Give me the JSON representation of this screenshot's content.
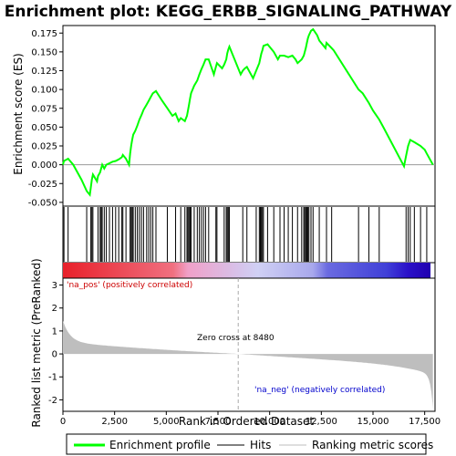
{
  "chart_data": {
    "type": "line",
    "title": "Enrichment plot: KEGG_ERBB_SIGNALING_PATHWAY",
    "xlabel": "Rank in Ordered Dataset",
    "ylabel_top": "Enrichment score (ES)",
    "ylabel_bottom": "Ranked list metric (PreRanked)",
    "xlim": [
      0,
      18000
    ],
    "ylim_top": [
      -0.055,
      0.185
    ],
    "ylim_bottom": [
      -2.5,
      3.3
    ],
    "x_ticks": [
      0,
      2500,
      5000,
      7500,
      10000,
      12500,
      15000,
      17500
    ],
    "x_tick_labels": [
      "0",
      "2,500",
      "5,000",
      "7,500",
      "10,000",
      "12,500",
      "15,000",
      "17,500"
    ],
    "y_ticks_top": [
      -0.05,
      -0.025,
      0.0,
      0.025,
      0.05,
      0.075,
      0.1,
      0.125,
      0.15,
      0.175
    ],
    "y_tick_labels_top": [
      "-0.050",
      "-0.025",
      "0.000",
      "0.025",
      "0.050",
      "0.075",
      "0.100",
      "0.125",
      "0.150",
      "0.175"
    ],
    "y_ticks_bottom": [
      -2,
      -1,
      0,
      1,
      2,
      3
    ],
    "y_tick_labels_bottom": [
      "-2",
      "-1",
      "0",
      "1",
      "2",
      "3"
    ],
    "annotations": {
      "pos_label": "'na_pos' (positively correlated)",
      "neg_label": "'na_neg' (negatively correlated)",
      "zero_cross": "Zero cross at 8480",
      "zero_cross_x": 8480
    },
    "hits": [
      50,
      250,
      1150,
      1350,
      1400,
      1450,
      1700,
      1800,
      1850,
      1900,
      2000,
      2100,
      2250,
      2400,
      2550,
      2700,
      2850,
      2900,
      3050,
      3250,
      3300,
      3350,
      3400,
      3500,
      3600,
      3700,
      3800,
      3900,
      4050,
      4150,
      4250,
      4350,
      4500,
      5050,
      5450,
      5700,
      5900,
      6000,
      6050,
      6100,
      6150,
      6200,
      6350,
      6500,
      6600,
      6700,
      6800,
      6900,
      7050,
      7400,
      7450,
      7800,
      7900,
      7950,
      8000,
      8050,
      8700,
      8900,
      9350,
      9500,
      9550,
      9600,
      9650,
      9700,
      9900,
      10200,
      10500,
      10700,
      10900,
      11100,
      11350,
      11550,
      11650,
      11700,
      11750,
      11800,
      11850,
      11900,
      12000,
      12100,
      12400,
      12750,
      13000,
      14300,
      14800,
      15300,
      16600,
      16700,
      16800,
      17000,
      17300,
      17600
    ],
    "es_curve": {
      "x": [
        0,
        50,
        250,
        500,
        900,
        1150,
        1300,
        1350,
        1400,
        1450,
        1650,
        1700,
        1800,
        1850,
        1900,
        2000,
        2100,
        2250,
        2400,
        2550,
        2700,
        2850,
        2900,
        3050,
        3200,
        3250,
        3300,
        3350,
        3400,
        3500,
        3600,
        3700,
        3800,
        3900,
        4050,
        4150,
        4250,
        4350,
        4500,
        4800,
        5050,
        5300,
        5450,
        5600,
        5700,
        5900,
        6000,
        6050,
        6100,
        6150,
        6200,
        6350,
        6500,
        6600,
        6700,
        6800,
        6900,
        7050,
        7300,
        7400,
        7450,
        7700,
        7800,
        7900,
        7950,
        8000,
        8050,
        8600,
        8700,
        8800,
        8900,
        9200,
        9350,
        9500,
        9550,
        9600,
        9650,
        9700,
        9900,
        10200,
        10400,
        10500,
        10700,
        10900,
        11100,
        11250,
        11350,
        11550,
        11650,
        11700,
        11750,
        11800,
        11850,
        11900,
        12000,
        12100,
        12300,
        12400,
        12700,
        12750,
        13000,
        13100,
        14300,
        14500,
        14800,
        15000,
        15300,
        15500,
        16500,
        16600,
        16700,
        16800,
        17000,
        17300,
        17500,
        17600,
        17900
      ],
      "y": [
        0.0,
        0.005,
        0.008,
        0.0,
        -0.02,
        -0.035,
        -0.04,
        -0.03,
        -0.02,
        -0.013,
        -0.022,
        -0.015,
        -0.01,
        -0.005,
        0.0,
        -0.005,
        0.0,
        0.002,
        0.004,
        0.005,
        0.007,
        0.01,
        0.013,
        0.008,
        0.0,
        0.015,
        0.025,
        0.033,
        0.04,
        0.045,
        0.052,
        0.06,
        0.066,
        0.073,
        0.08,
        0.085,
        0.09,
        0.095,
        0.098,
        0.085,
        0.075,
        0.065,
        0.068,
        0.058,
        0.062,
        0.058,
        0.065,
        0.072,
        0.08,
        0.088,
        0.095,
        0.105,
        0.112,
        0.12,
        0.127,
        0.133,
        0.14,
        0.14,
        0.12,
        0.13,
        0.135,
        0.128,
        0.133,
        0.14,
        0.148,
        0.153,
        0.157,
        0.12,
        0.125,
        0.128,
        0.13,
        0.115,
        0.125,
        0.135,
        0.142,
        0.148,
        0.152,
        0.158,
        0.16,
        0.15,
        0.14,
        0.145,
        0.145,
        0.143,
        0.145,
        0.14,
        0.135,
        0.14,
        0.145,
        0.15,
        0.155,
        0.162,
        0.168,
        0.172,
        0.178,
        0.18,
        0.172,
        0.165,
        0.155,
        0.162,
        0.155,
        0.152,
        0.1,
        0.095,
        0.082,
        0.072,
        0.06,
        0.05,
        -0.002,
        0.012,
        0.025,
        0.033,
        0.03,
        0.025,
        0.02,
        0.015,
        0.0
      ]
    },
    "colors": {
      "es_line": "#00ff00",
      "hit": "#000000",
      "metric_fill": "#bebebe",
      "zero_line": "#aaaaaa",
      "pos_text": "#cc0000",
      "neg_text": "#0000cc"
    },
    "legend": [
      "Enrichment profile",
      "Hits",
      "Ranking metric scores"
    ]
  }
}
